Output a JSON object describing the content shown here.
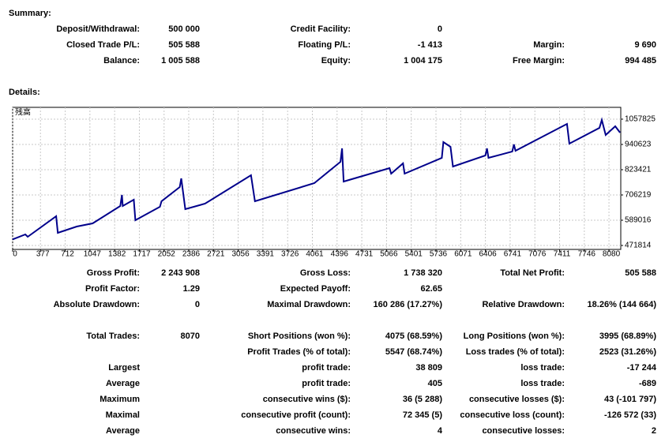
{
  "summary": {
    "title": "Summary:",
    "rows": [
      [
        "Deposit/Withdrawal:",
        "500 000",
        "Credit Facility:",
        "0"
      ],
      [
        "Closed Trade P/L:",
        "505 588",
        "Floating P/L:",
        "-1 413",
        "Margin:",
        "9 690"
      ],
      [
        "Balance:",
        "1 005 588",
        "Equity:",
        "1 004 175",
        "Free Margin:",
        "994 485"
      ]
    ]
  },
  "details": {
    "title": "Details:",
    "rows": [
      [
        "Gross Profit:",
        "2 243 908",
        "Gross Loss:",
        "1 738 320",
        "Total Net Profit:",
        "505 588"
      ],
      [
        "Profit Factor:",
        "1.29",
        "Expected Payoff:",
        "62.65"
      ],
      [
        "Absolute Drawdown:",
        "0",
        "Maximal Drawdown:",
        "160 286 (17.27%)",
        "Relative Drawdown:",
        "18.26% (144 664)"
      ],
      [
        "Total Trades:",
        "8070",
        "Short Positions (won %):",
        "4075 (68.59%)",
        "Long Positions (won %):",
        "3995 (68.89%)"
      ],
      [
        null,
        null,
        "Profit Trades (% of total):",
        "5547 (68.74%)",
        "Loss trades (% of total):",
        "2523 (31.26%)"
      ],
      [
        "Largest",
        null,
        "profit trade:",
        "38 809",
        "loss trade:",
        "-17 244"
      ],
      [
        "Average",
        null,
        "profit trade:",
        "405",
        "loss trade:",
        "-689"
      ],
      [
        "Maximum",
        null,
        "consecutive wins ($):",
        "36 (5 288)",
        "consecutive losses ($):",
        "43 (-101 797)"
      ],
      [
        "Maximal",
        null,
        "consecutive profit (count):",
        "72 345 (5)",
        "consecutive loss (count):",
        "-126 572 (33)"
      ],
      [
        "Average",
        null,
        "consecutive wins:",
        "4",
        "consecutive losses:",
        "2"
      ]
    ]
  },
  "chart_data": {
    "type": "line",
    "grid": true,
    "xlim": [
      0,
      8240
    ],
    "ylim": [
      453500,
      1112700
    ],
    "xticks": [
      0,
      377,
      712,
      1047,
      1382,
      1717,
      2052,
      2386,
      2721,
      3056,
      3391,
      3726,
      4061,
      4396,
      4731,
      5066,
      5401,
      5736,
      6071,
      6406,
      6741,
      7076,
      7411,
      7746,
      8080
    ],
    "yticks": [
      1057825,
      940623,
      823421,
      706219,
      589016,
      471814
    ],
    "x": [
      0,
      172,
      204,
      590,
      612,
      869,
      1084,
      1459,
      1481,
      1492,
      1642,
      1663,
      1996,
      2017,
      2264,
      2285,
      2339,
      2607,
      3230,
      3283,
      4088,
      4442,
      4464,
      4485,
      5107,
      5129,
      5290,
      5311,
      5815,
      5837,
      5933,
      5966,
      6406,
      6427,
      6448,
      6770,
      6792,
      6813,
      7511,
      7543,
      7951,
      7983,
      8036,
      8165,
      8230
    ],
    "series": [
      {
        "name": "残高",
        "color": "#00008b",
        "values": [
          500000,
          523100,
          512100,
          607300,
          530400,
          559700,
          574400,
          654900,
          706200,
          654900,
          684200,
          589000,
          651300,
          676900,
          742900,
          783200,
          640300,
          665900,
          797800,
          676900,
          761200,
          860000,
          922300,
          768500,
          830700,
          805000,
          852700,
          805000,
          878300,
          951600,
          929600,
          838000,
          889300,
          922300,
          878300,
          907700,
          940600,
          911300,
          1035900,
          944300,
          1017600,
          1054200,
          984600,
          1024900,
          995600
        ]
      }
    ]
  }
}
